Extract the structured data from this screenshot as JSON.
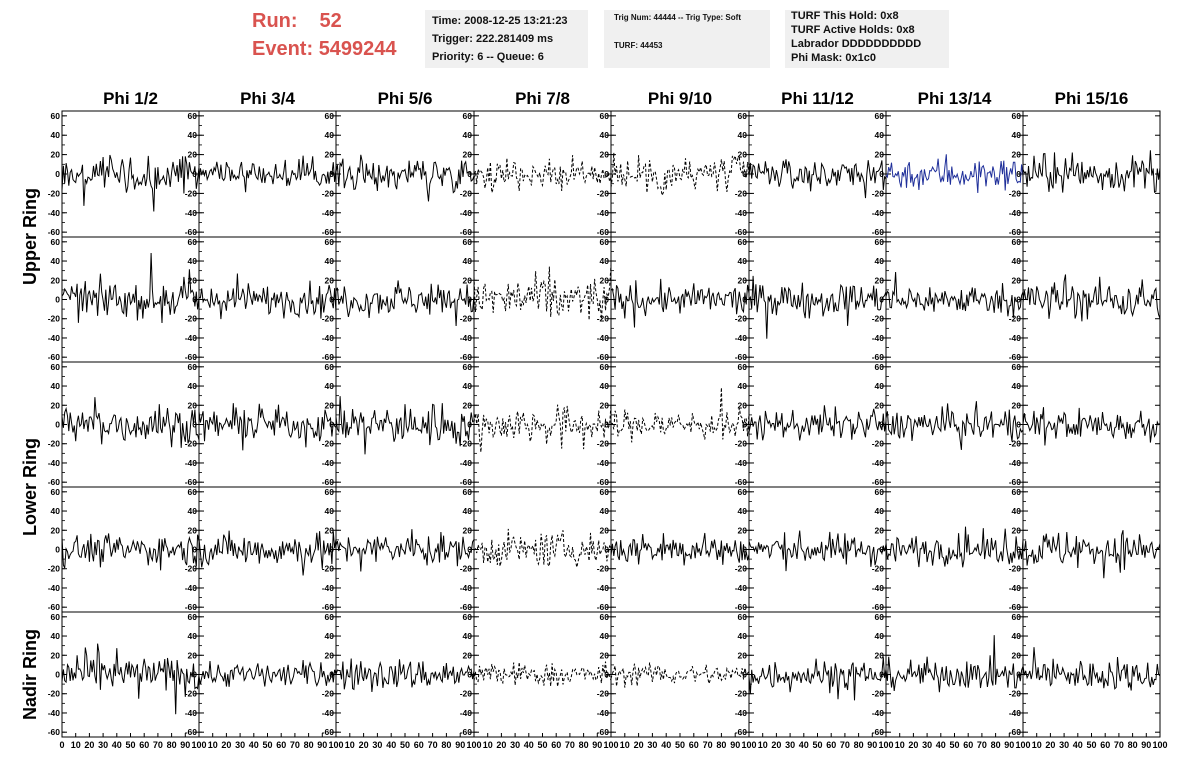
{
  "header": {
    "run_label": "Run:",
    "run_value": "52",
    "event_label": "Event:",
    "event_value": "5499244",
    "box1": [
      "Time: 2008-12-25 13:21:23",
      "Trigger: 222.281409 ms",
      "Priority: 6 -- Queue: 6"
    ],
    "box2": [
      "Trig Num: 44444 -- Trig Type: Soft",
      "TURF: 44453"
    ],
    "box3": [
      "TURF This Hold: 0x8",
      "TURF Active Holds: 0x8",
      "Labrador DDDDDDDDDD",
      "Phi Mask: 0x1c0"
    ]
  },
  "chart_data": {
    "type": "line",
    "columns": [
      "Phi 1/2",
      "Phi 3/4",
      "Phi 5/6",
      "Phi 7/8",
      "Phi 9/10",
      "Phi 11/12",
      "Phi 13/14",
      "Phi 15/16"
    ],
    "row_groups": [
      {
        "label": "Upper Ring",
        "rows": 2
      },
      {
        "label": "Lower Ring",
        "rows": 2
      },
      {
        "label": "Nadir Ring",
        "rows": 1
      }
    ],
    "ylim": [
      -65,
      65
    ],
    "yticks": [
      -60,
      -40,
      -20,
      0,
      20,
      40,
      60
    ],
    "xlim": [
      0,
      100
    ],
    "xticks": [
      0,
      10,
      20,
      30,
      40,
      50,
      60,
      70,
      80,
      90,
      100
    ],
    "x_sample_step": 1,
    "samples_per_trace": 100,
    "styles": {
      "normal": "#000000",
      "highlight": "#1f2f9a"
    },
    "dashed_columns": [
      3,
      4
    ],
    "dashed_panels": [
      [
        0,
        3
      ],
      [
        0,
        4
      ],
      [
        1,
        3
      ],
      [
        2,
        3
      ],
      [
        2,
        4
      ],
      [
        3,
        3
      ],
      [
        4,
        3
      ],
      [
        4,
        4
      ]
    ],
    "highlight_panels": [
      [
        0,
        6
      ]
    ],
    "amplitude": [
      [
        18,
        13,
        15,
        14,
        20,
        13,
        15,
        17
      ],
      [
        17,
        15,
        15,
        22,
        14,
        16,
        14,
        19
      ],
      [
        17,
        15,
        19,
        17,
        15,
        14,
        15,
        15
      ],
      [
        15,
        16,
        14,
        16,
        15,
        15,
        14,
        18
      ],
      [
        17,
        12,
        15,
        11,
        10,
        15,
        14,
        15
      ]
    ]
  }
}
